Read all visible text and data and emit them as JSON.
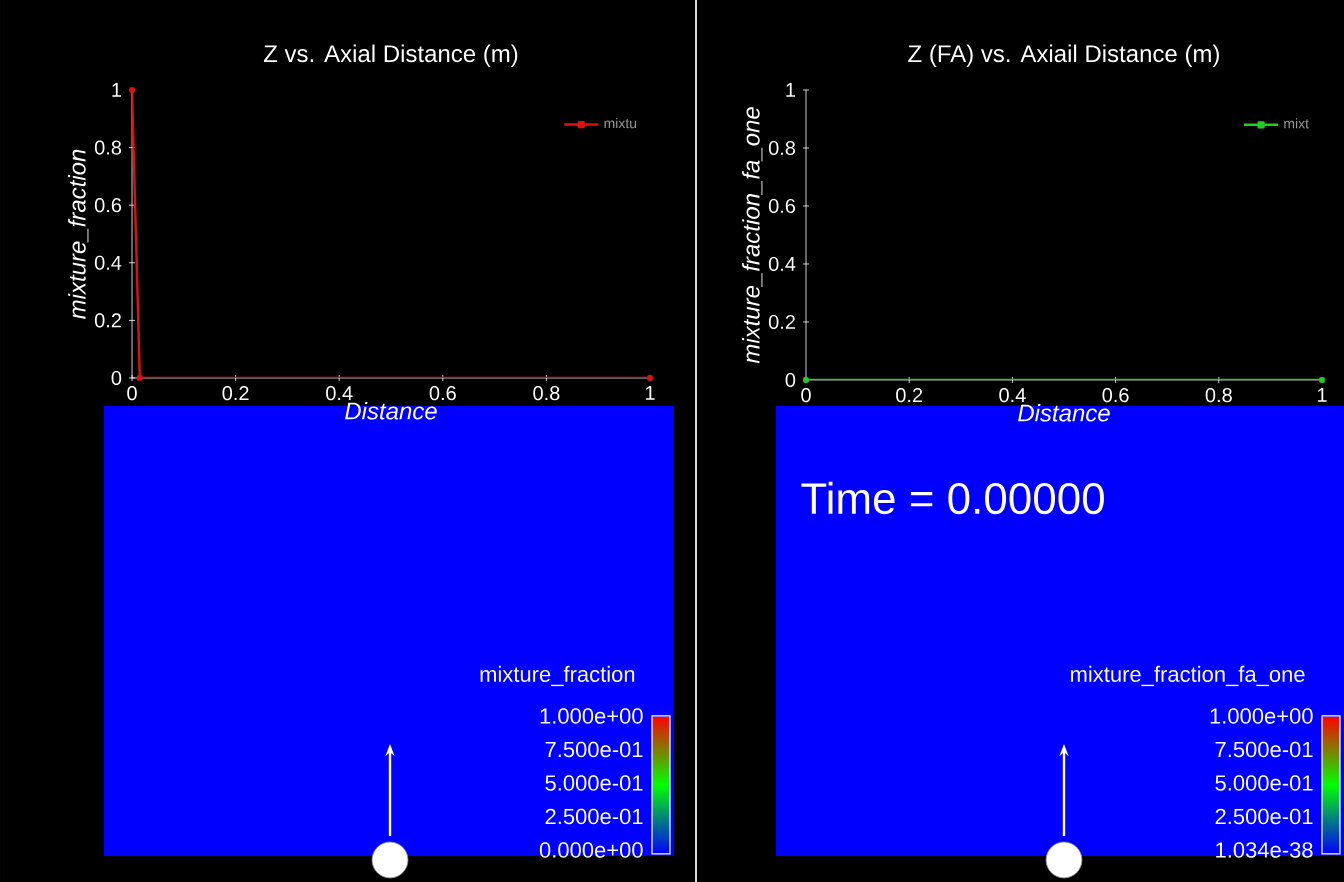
{
  "chart_data": [
    {
      "type": "line",
      "title": "Z vs. Axial Distance (m)",
      "xlabel": "Distance",
      "ylabel": "mixture_fraction",
      "x": [
        0,
        0.015,
        1
      ],
      "series": [
        {
          "name": "mixtu",
          "color": "#e01010",
          "values": [
            1,
            0,
            0
          ]
        }
      ],
      "xlim": [
        0,
        1
      ],
      "ylim": [
        0,
        1
      ],
      "xticks": [
        0,
        0.2,
        0.4,
        0.6,
        0.8,
        1
      ],
      "yticks": [
        0,
        0.2,
        0.4,
        0.6,
        0.8,
        1
      ],
      "legend": "top right",
      "marker": "square",
      "line_style": "solid"
    },
    {
      "type": "line",
      "title": "Z (FA) vs. Axiail Distance (m)",
      "xlabel": "Distance",
      "ylabel": "mixture_fraction_fa_one",
      "x": [
        0,
        1
      ],
      "series": [
        {
          "name": "mixt",
          "color": "#20d020",
          "values": [
            0,
            0
          ]
        }
      ],
      "xlim": [
        0,
        1
      ],
      "ylim": [
        0,
        1
      ],
      "xticks": [
        0,
        0.2,
        0.4,
        0.6,
        0.8,
        1
      ],
      "yticks": [
        0,
        0.2,
        0.4,
        0.6,
        0.8,
        1
      ],
      "legend": "top right",
      "marker": "square",
      "line_style": "solid"
    },
    {
      "type": "other",
      "annotations": [
        "mixture_fraction",
        "1.000e+00",
        "7.500e-01",
        "5.000e-01",
        "2.500e-01",
        "0.000e+00"
      ]
    },
    {
      "type": "other",
      "annotations": [
        "Time = 0.00000",
        "mixture_fraction_fa_one",
        "1.000e+00",
        "7.500e-01",
        "5.000e-01",
        "2.500e-01",
        "1.034e-38"
      ]
    }
  ]
}
